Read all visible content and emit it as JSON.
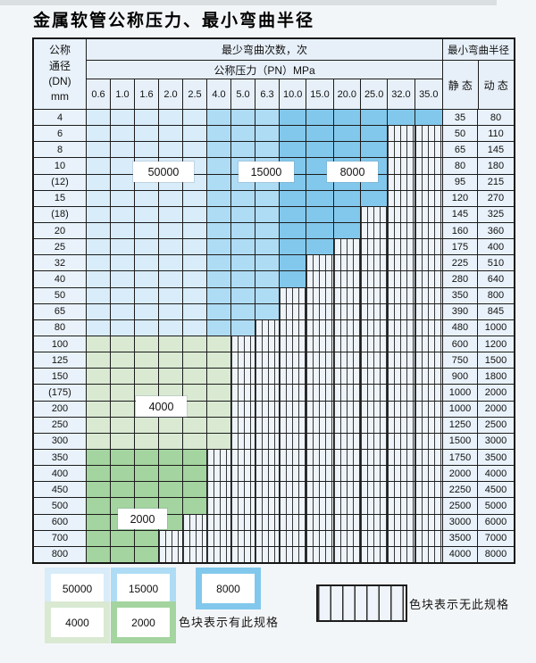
{
  "title": "金属软管公称压力、最小弯曲半径",
  "table": {
    "header": {
      "dn_lines": [
        "公称",
        "通径",
        "(DN)",
        "mm"
      ],
      "cycles_label": "最少弯曲次数，次",
      "pressure_label": "公称压力（PN）MPa",
      "radius_label": "最小弯曲半径",
      "static_label": "静 态",
      "dynamic_label": "动 态",
      "pressure_columns": [
        "0.6",
        "1.0",
        "1.6",
        "2.0",
        "2.5",
        "4.0",
        "5.0",
        "6.3",
        "10.0",
        "15.0",
        "20.0",
        "25.0",
        "32.0",
        "35.0"
      ]
    },
    "cell_codes": {
      "A": "50000",
      "B": "15000",
      "C": "8000",
      "D": "4000",
      "E": "2000",
      "-": "无此规格"
    },
    "rows": [
      {
        "dn": "4",
        "cells": "AAAAABBBCCCCCC",
        "static": "35",
        "dynamic": "80"
      },
      {
        "dn": "6",
        "cells": "AAAAABBBCCCC--",
        "static": "50",
        "dynamic": "110"
      },
      {
        "dn": "8",
        "cells": "AAAAABBBCCCC--",
        "static": "65",
        "dynamic": "145"
      },
      {
        "dn": "10",
        "cells": "AAAAABBBCCCC--",
        "static": "80",
        "dynamic": "180"
      },
      {
        "dn": "(12)",
        "cells": "AAAAABBBCCCC--",
        "static": "95",
        "dynamic": "215"
      },
      {
        "dn": "15",
        "cells": "AAAAABBBCCCC--",
        "static": "120",
        "dynamic": "270"
      },
      {
        "dn": "(18)",
        "cells": "AAAAABBBCCC---",
        "static": "145",
        "dynamic": "325"
      },
      {
        "dn": "20",
        "cells": "AAAAABBBCCC---",
        "static": "160",
        "dynamic": "360"
      },
      {
        "dn": "25",
        "cells": "AAAAABBBCC----",
        "static": "175",
        "dynamic": "400"
      },
      {
        "dn": "32",
        "cells": "AAAAABBBC-----",
        "static": "225",
        "dynamic": "510"
      },
      {
        "dn": "40",
        "cells": "AAAAABBBC-----",
        "static": "280",
        "dynamic": "640"
      },
      {
        "dn": "50",
        "cells": "AAAAABBB------",
        "static": "350",
        "dynamic": "800"
      },
      {
        "dn": "65",
        "cells": "AAAAABBB------",
        "static": "390",
        "dynamic": "845"
      },
      {
        "dn": "80",
        "cells": "AAAAABB-------",
        "static": "480",
        "dynamic": "1000"
      },
      {
        "dn": "100",
        "cells": "DDDDDD--------",
        "static": "600",
        "dynamic": "1200"
      },
      {
        "dn": "125",
        "cells": "DDDDDD--------",
        "static": "750",
        "dynamic": "1500"
      },
      {
        "dn": "150",
        "cells": "DDDDDD--------",
        "static": "900",
        "dynamic": "1800"
      },
      {
        "dn": "(175)",
        "cells": "DDDDDD--------",
        "static": "1000",
        "dynamic": "2000"
      },
      {
        "dn": "200",
        "cells": "DDDDDD--------",
        "static": "1000",
        "dynamic": "2000"
      },
      {
        "dn": "250",
        "cells": "DDDDDD--------",
        "static": "1250",
        "dynamic": "2500"
      },
      {
        "dn": "300",
        "cells": "DDDDDD--------",
        "static": "1500",
        "dynamic": "3000"
      },
      {
        "dn": "350",
        "cells": "EEEEE---------",
        "static": "1750",
        "dynamic": "3500"
      },
      {
        "dn": "400",
        "cells": "EEEEE---------",
        "static": "2000",
        "dynamic": "4000"
      },
      {
        "dn": "450",
        "cells": "EEEEE---------",
        "static": "2250",
        "dynamic": "4500"
      },
      {
        "dn": "500",
        "cells": "EEEEE---------",
        "static": "2500",
        "dynamic": "5000"
      },
      {
        "dn": "600",
        "cells": "EEEE----------",
        "static": "3000",
        "dynamic": "6000"
      },
      {
        "dn": "700",
        "cells": "EEE-----------",
        "static": "3500",
        "dynamic": "7000"
      },
      {
        "dn": "800",
        "cells": "EEE-----------",
        "static": "4000",
        "dynamic": "8000"
      }
    ]
  },
  "overlays": {
    "b50000": "50000",
    "b15000": "15000",
    "b8000": "8000",
    "g4000": "4000",
    "g2000": "2000"
  },
  "legend": {
    "items": [
      {
        "label": "50000",
        "code": "A"
      },
      {
        "label": "15000",
        "code": "B"
      },
      {
        "label": "8000",
        "code": "C"
      },
      {
        "label": "4000",
        "code": "D"
      },
      {
        "label": "2000",
        "code": "E"
      }
    ],
    "has_spec_text": "色块表示有此规格",
    "no_spec_text": "色块表示无此规格"
  },
  "colors": {
    "c50000": "#d8ecf9",
    "c15000": "#aedcf4",
    "c8000": "#82c8ec",
    "c4000": "#d9e9d2",
    "c2000": "#a4d49f",
    "no_spec_bg": "#eef4fa",
    "label_cell_bg": "#e9f2fa",
    "header_bg": "#e7f0f9",
    "grid": "#1c1c1c"
  }
}
